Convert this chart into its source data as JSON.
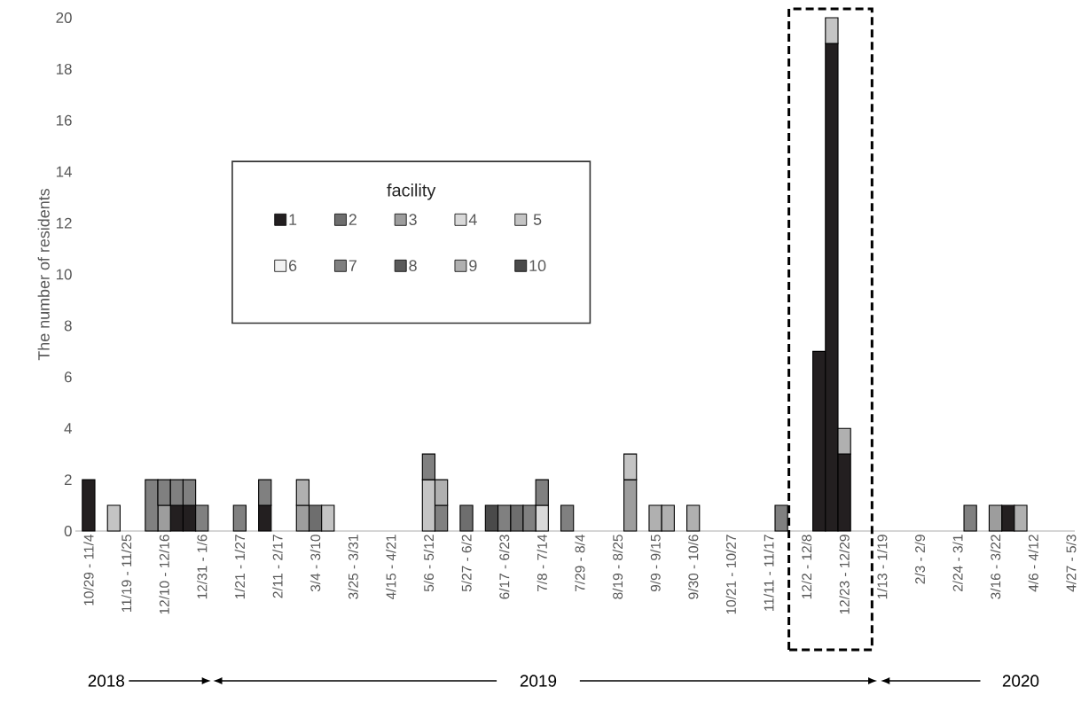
{
  "chart_data": {
    "type": "bar",
    "stacked": true,
    "ylabel": "The number of residents",
    "legend_title": "facility",
    "legend": "center",
    "categories": [
      "10/29 - 11/4",
      null,
      null,
      "11/19 - 11/25",
      null,
      null,
      "12/10 - 12/16",
      null,
      null,
      "12/31 - 1/6",
      null,
      null,
      "1/21 - 1/27",
      null,
      null,
      "2/11 - 2/17",
      null,
      null,
      "3/4 - 3/10",
      null,
      null,
      "3/25 - 3/31",
      null,
      null,
      "4/15 - 4/21",
      null,
      null,
      "5/6 - 5/12",
      null,
      null,
      "5/27 - 6/2",
      null,
      null,
      "6/17 - 6/23",
      null,
      null,
      "7/8 - 7/14",
      null,
      null,
      "7/29 - 8/4",
      null,
      null,
      "8/19 - 8/25",
      null,
      null,
      "9/9 - 9/15",
      null,
      null,
      "9/30 - 10/6",
      null,
      null,
      "10/21 - 10/27",
      null,
      null,
      "11/11 - 11/17",
      null,
      null,
      "12/2 - 12/8",
      null,
      null,
      "12/23 - 12/29",
      null,
      null,
      "1/13 - 1/19",
      null,
      null,
      "2/3 - 2/9",
      null,
      null,
      "2/24 - 3/1",
      null,
      null,
      "3/16 - 3/22",
      null,
      null,
      "4/6 - 4/12",
      null,
      null,
      "4/27 - 5/3"
    ],
    "ylim": [
      0,
      20
    ],
    "yticks": [
      0,
      2,
      4,
      6,
      8,
      10,
      12,
      14,
      16,
      18,
      20
    ],
    "series": [
      {
        "name": "1",
        "color": "#231f20",
        "values": [
          2,
          0,
          0,
          0,
          0,
          0,
          0,
          1,
          1,
          0,
          0,
          0,
          0,
          0,
          1,
          0,
          0,
          0,
          0,
          0,
          0,
          0,
          0,
          0,
          0,
          0,
          0,
          0,
          0,
          0,
          0,
          0,
          0,
          0,
          0,
          0,
          0,
          0,
          0,
          0,
          0,
          0,
          0,
          0,
          0,
          0,
          0,
          0,
          0,
          0,
          0,
          0,
          0,
          0,
          0,
          0,
          0,
          0,
          7,
          19,
          3,
          0,
          0,
          0,
          0,
          0,
          0,
          0,
          0,
          0,
          0,
          0,
          0,
          1,
          0,
          0,
          0,
          0,
          0
        ]
      },
      {
        "name": "2",
        "color": "#6e6e6e",
        "values": [
          0,
          0,
          0,
          0,
          0,
          0,
          0,
          0,
          0,
          0,
          0,
          0,
          0,
          0,
          0,
          0,
          0,
          0,
          1,
          0,
          0,
          0,
          0,
          0,
          0,
          0,
          0,
          0,
          0,
          0,
          1,
          0,
          0,
          0,
          1,
          0,
          0,
          0,
          0,
          0,
          0,
          0,
          0,
          0,
          0,
          0,
          0,
          0,
          0,
          0,
          0,
          0,
          0,
          0,
          0,
          0,
          0,
          0,
          0,
          0,
          0,
          0,
          0,
          0,
          0,
          0,
          0,
          0,
          0,
          0,
          0,
          0,
          0,
          0,
          0,
          0,
          0,
          0,
          0
        ]
      },
      {
        "name": "3",
        "color": "#9d9d9d",
        "values": [
          0,
          0,
          0,
          0,
          0,
          0,
          1,
          0,
          0,
          0,
          0,
          0,
          0,
          0,
          0,
          0,
          0,
          1,
          0,
          0,
          0,
          0,
          0,
          0,
          0,
          0,
          0,
          0,
          0,
          0,
          0,
          0,
          0,
          0,
          0,
          0,
          0,
          0,
          0,
          0,
          0,
          0,
          0,
          2,
          0,
          0,
          0,
          0,
          0,
          0,
          0,
          0,
          0,
          0,
          0,
          0,
          0,
          0,
          0,
          0,
          0,
          0,
          0,
          0,
          0,
          0,
          0,
          0,
          0,
          0,
          0,
          0,
          1,
          0,
          0,
          0,
          0,
          0,
          0
        ]
      },
      {
        "name": "4",
        "color": "#d9d9d9",
        "values": [
          0,
          0,
          0,
          0,
          0,
          0,
          0,
          0,
          0,
          0,
          0,
          0,
          0,
          0,
          0,
          0,
          0,
          0,
          0,
          0,
          0,
          0,
          0,
          0,
          0,
          0,
          0,
          0,
          0,
          0,
          0,
          0,
          0,
          0,
          0,
          0,
          1,
          0,
          0,
          0,
          0,
          0,
          0,
          0,
          0,
          0,
          0,
          0,
          0,
          0,
          0,
          0,
          0,
          0,
          0,
          0,
          0,
          0,
          0,
          0,
          0,
          0,
          0,
          0,
          0,
          0,
          0,
          0,
          0,
          0,
          0,
          0,
          0,
          0,
          0,
          0,
          0,
          0,
          0
        ]
      },
      {
        "name": "5",
        "color": "#c4c4c4",
        "values": [
          0,
          0,
          1,
          0,
          0,
          0,
          0,
          0,
          0,
          0,
          0,
          0,
          0,
          0,
          0,
          0,
          0,
          0,
          0,
          1,
          0,
          0,
          0,
          0,
          0,
          0,
          0,
          2,
          0,
          0,
          0,
          0,
          0,
          0,
          0,
          0,
          0,
          0,
          0,
          0,
          0,
          0,
          0,
          1,
          0,
          0,
          0,
          0,
          0,
          0,
          0,
          0,
          0,
          0,
          0,
          0,
          0,
          0,
          0,
          1,
          0,
          0,
          0,
          0,
          0,
          0,
          0,
          0,
          0,
          0,
          0,
          0,
          0,
          0,
          0,
          0,
          0,
          0,
          0
        ]
      },
      {
        "name": "6",
        "color": "#f2f2f2",
        "values": [
          0,
          0,
          0,
          0,
          0,
          0,
          0,
          0,
          0,
          0,
          0,
          0,
          0,
          0,
          0,
          0,
          0,
          0,
          0,
          0,
          0,
          0,
          0,
          0,
          0,
          0,
          0,
          0,
          0,
          0,
          0,
          0,
          0,
          0,
          0,
          0,
          0,
          0,
          0,
          0,
          0,
          0,
          0,
          0,
          0,
          0,
          0,
          0,
          0,
          0,
          0,
          0,
          0,
          0,
          0,
          0,
          0,
          0,
          0,
          0,
          0,
          0,
          0,
          0,
          0,
          0,
          0,
          0,
          0,
          0,
          0,
          0,
          0,
          0,
          0,
          0,
          0,
          0,
          0
        ]
      },
      {
        "name": "7",
        "color": "#808080",
        "values": [
          0,
          0,
          0,
          0,
          0,
          2,
          1,
          1,
          1,
          1,
          0,
          0,
          1,
          0,
          1,
          0,
          0,
          0,
          0,
          0,
          0,
          0,
          0,
          0,
          0,
          0,
          0,
          1,
          1,
          0,
          0,
          0,
          0,
          1,
          0,
          1,
          1,
          0,
          1,
          0,
          0,
          0,
          0,
          0,
          0,
          0,
          0,
          0,
          0,
          0,
          0,
          0,
          0,
          0,
          0,
          1,
          0,
          0,
          0,
          0,
          0,
          0,
          0,
          0,
          0,
          0,
          0,
          0,
          0,
          0,
          1,
          0,
          0,
          0,
          0,
          0,
          0,
          0,
          0
        ]
      },
      {
        "name": "8",
        "color": "#5a5a5a",
        "values": [
          0,
          0,
          0,
          0,
          0,
          0,
          0,
          0,
          0,
          0,
          0,
          0,
          0,
          0,
          0,
          0,
          0,
          0,
          0,
          0,
          0,
          0,
          0,
          0,
          0,
          0,
          0,
          0,
          0,
          0,
          0,
          0,
          0,
          0,
          0,
          0,
          0,
          0,
          0,
          0,
          0,
          0,
          0,
          0,
          0,
          0,
          0,
          0,
          0,
          0,
          0,
          0,
          0,
          0,
          0,
          0,
          0,
          0,
          0,
          0,
          0,
          0,
          0,
          0,
          0,
          0,
          0,
          0,
          0,
          0,
          0,
          0,
          0,
          0,
          0,
          0,
          0,
          0,
          0
        ]
      },
      {
        "name": "9",
        "color": "#b0b0b0",
        "values": [
          0,
          0,
          0,
          0,
          0,
          0,
          0,
          0,
          0,
          0,
          0,
          0,
          0,
          0,
          0,
          0,
          0,
          1,
          0,
          0,
          0,
          0,
          0,
          0,
          0,
          0,
          0,
          0,
          1,
          0,
          0,
          0,
          0,
          0,
          0,
          0,
          0,
          0,
          0,
          0,
          0,
          0,
          0,
          0,
          0,
          1,
          1,
          0,
          1,
          0,
          0,
          0,
          0,
          0,
          0,
          0,
          0,
          0,
          0,
          0,
          1,
          0,
          0,
          0,
          0,
          0,
          0,
          0,
          0,
          0,
          0,
          0,
          0,
          0,
          1,
          0,
          0,
          0,
          0
        ]
      },
      {
        "name": "10",
        "color": "#4a4a4a",
        "values": [
          0,
          0,
          0,
          0,
          0,
          0,
          0,
          0,
          0,
          0,
          0,
          0,
          0,
          0,
          0,
          0,
          0,
          0,
          0,
          0,
          0,
          0,
          0,
          0,
          0,
          0,
          0,
          0,
          0,
          0,
          0,
          0,
          1,
          0,
          0,
          0,
          0,
          0,
          0,
          0,
          0,
          0,
          0,
          0,
          0,
          0,
          0,
          0,
          0,
          0,
          0,
          0,
          0,
          0,
          0,
          0,
          0,
          0,
          0,
          0,
          0,
          0,
          0,
          0,
          0,
          0,
          0,
          0,
          0,
          0,
          0,
          0,
          0,
          0,
          0,
          0,
          0,
          0,
          0
        ]
      }
    ],
    "annotations": [
      "2018",
      "2019",
      "2020"
    ]
  }
}
